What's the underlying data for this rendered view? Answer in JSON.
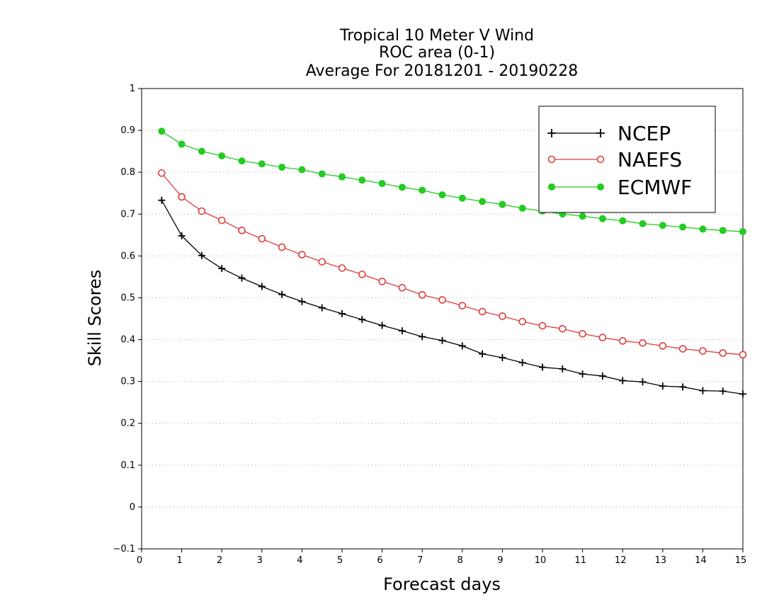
{
  "chart_data": {
    "type": "line",
    "title": [
      "Tropical 10 Meter V Wind",
      "ROC area (0-1)",
      "Average For 20181201 - 20190228"
    ],
    "xlabel": "Forecast days",
    "ylabel": "Skill Scores",
    "xlim": [
      0,
      15
    ],
    "ylim": [
      -0.1,
      1
    ],
    "xticks": [
      "0",
      "1",
      "2",
      "3",
      "4",
      "5",
      "6",
      "7",
      "8",
      "9",
      "10",
      "11",
      "12",
      "13",
      "14",
      "15"
    ],
    "yticks": [
      "−0.1",
      "0",
      "0.1",
      "0.2",
      "0.3",
      "0.4",
      "0.5",
      "0.6",
      "0.7",
      "0.8",
      "0.9",
      "1"
    ],
    "ytick_values": [
      -0.1,
      0,
      0.1,
      0.2,
      0.3,
      0.4,
      0.5,
      0.6,
      0.7,
      0.8,
      0.9,
      1
    ],
    "grid": "horizontal dotted",
    "legend_position": "top-right",
    "x": [
      0.5,
      1,
      1.5,
      2,
      2.5,
      3,
      3.5,
      4,
      4.5,
      5,
      5.5,
      6,
      6.5,
      7,
      7.5,
      8,
      8.5,
      9,
      9.5,
      10,
      10.5,
      11,
      11.5,
      12,
      12.5,
      13,
      13.5,
      14,
      14.5,
      15
    ],
    "series": [
      {
        "name": "NCEP",
        "color": "#000000",
        "marker": "plus",
        "values": [
          0.733,
          0.648,
          0.601,
          0.57,
          0.547,
          0.527,
          0.508,
          0.491,
          0.476,
          0.462,
          0.448,
          0.434,
          0.421,
          0.407,
          0.398,
          0.385,
          0.366,
          0.357,
          0.345,
          0.334,
          0.33,
          0.318,
          0.313,
          0.302,
          0.299,
          0.289,
          0.287,
          0.278,
          0.277,
          0.27
        ]
      },
      {
        "name": "NAEFS",
        "color": "#e03c3c",
        "marker": "open-circle",
        "values": [
          0.798,
          0.741,
          0.707,
          0.685,
          0.661,
          0.641,
          0.621,
          0.603,
          0.586,
          0.571,
          0.556,
          0.539,
          0.524,
          0.507,
          0.495,
          0.481,
          0.467,
          0.456,
          0.443,
          0.433,
          0.426,
          0.414,
          0.405,
          0.397,
          0.392,
          0.385,
          0.378,
          0.373,
          0.368,
          0.364
        ]
      },
      {
        "name": "ECMWF",
        "color": "#22cc22",
        "marker": "filled-circle",
        "values": [
          0.898,
          0.867,
          0.85,
          0.839,
          0.827,
          0.82,
          0.812,
          0.806,
          0.796,
          0.789,
          0.781,
          0.773,
          0.764,
          0.757,
          0.746,
          0.738,
          0.73,
          0.723,
          0.714,
          0.707,
          0.7,
          0.695,
          0.689,
          0.684,
          0.677,
          0.673,
          0.669,
          0.664,
          0.661,
          0.658
        ]
      }
    ]
  }
}
